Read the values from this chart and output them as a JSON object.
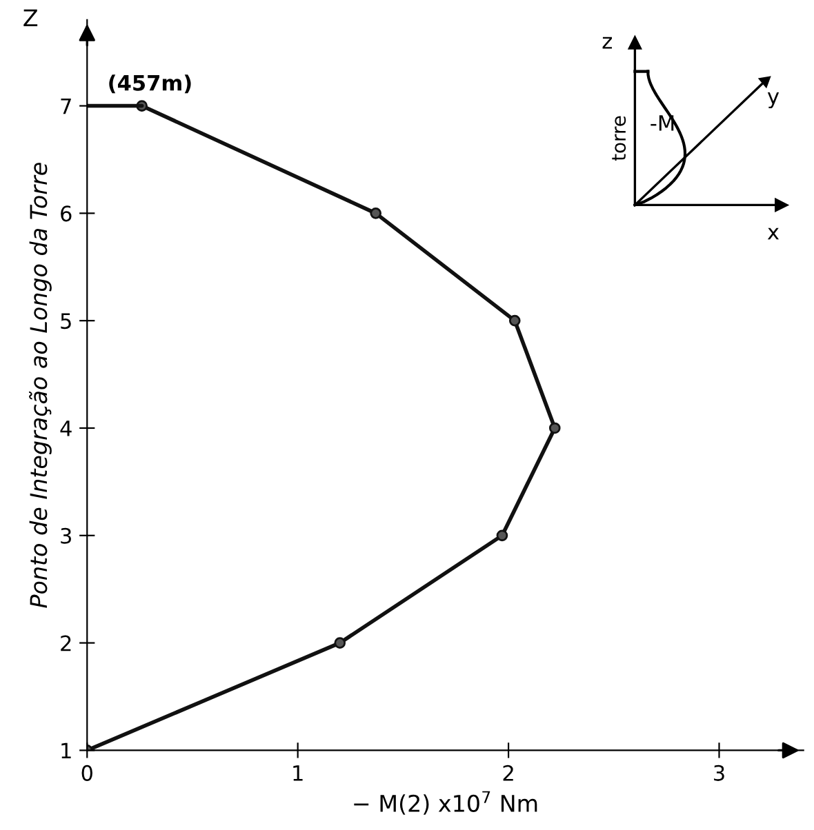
{
  "chart_data": {
    "type": "line",
    "xlabel": "− M(2) x10$^{7}$ Nm",
    "ylabel": "Ponto de Integração ao Longo da Torre",
    "series": [
      {
        "color": "#111111",
        "marker": "circle",
        "x": [
          0,
          1.2,
          1.97,
          2.22,
          2.03,
          1.37,
          0.26
        ],
        "values": [
          1,
          2,
          3,
          4,
          5,
          6,
          7
        ]
      },
      {
        "color": "#111111",
        "x": [
          0,
          0.26
        ],
        "values": [
          7,
          7
        ]
      }
    ],
    "xlim": [
      0,
      3.4
    ],
    "ylim": [
      1,
      7.8
    ],
    "xticks": [
      0,
      1,
      2,
      3
    ],
    "yticks": [
      1,
      2,
      3,
      4,
      5,
      6,
      7
    ],
    "grid": false,
    "legend": false,
    "annotations": [
      "Z",
      {
        "text": "(457m)",
        "x": 0.26,
        "y": 7
      },
      "z",
      "torre",
      "-M",
      "y",
      "x"
    ]
  }
}
